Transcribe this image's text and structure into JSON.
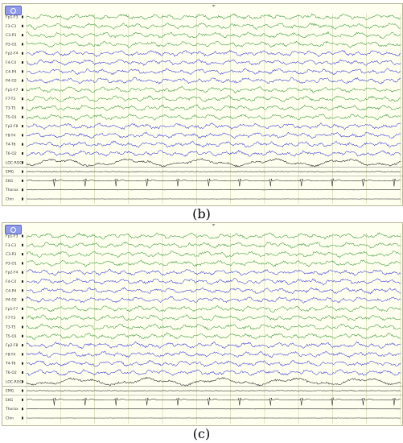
{
  "panels": [
    {
      "caption": "(b)",
      "button_icon": "settings-circle-icon",
      "channels": [
        {
          "label": "Fp1-F3",
          "type": "eeg-green"
        },
        {
          "label": "F3-C3",
          "type": "eeg-green"
        },
        {
          "label": "C3-P3",
          "type": "eeg-green"
        },
        {
          "label": "P3-O1",
          "type": "eeg-green"
        },
        {
          "label": "Fp2-F4",
          "type": "eeg-blue"
        },
        {
          "label": "F4-C4",
          "type": "eeg-blue"
        },
        {
          "label": "C4-P4",
          "type": "eeg-blue"
        },
        {
          "label": "P4-O2",
          "type": "eeg-blue"
        },
        {
          "label": "Fp1-F7",
          "type": "eeg-green"
        },
        {
          "label": "F7-T3",
          "type": "eeg-green"
        },
        {
          "label": "T3-T5",
          "type": "eeg-green"
        },
        {
          "label": "T5-O1",
          "type": "eeg-green"
        },
        {
          "label": "Fp2-F8",
          "type": "eeg-blue"
        },
        {
          "label": "F8-T4",
          "type": "eeg-blue"
        },
        {
          "label": "T4-T6",
          "type": "eeg-blue"
        },
        {
          "label": "T6-O2",
          "type": "eeg-blue"
        },
        {
          "label": "LOC-ROC",
          "type": "eog"
        },
        {
          "label": "EMG",
          "type": "emg"
        },
        {
          "label": "EKG",
          "type": "ekg"
        },
        {
          "label": "Thorax",
          "type": "flat"
        },
        {
          "label": "Chin",
          "type": "flat"
        }
      ]
    },
    {
      "caption": "(c)",
      "button_icon": "settings-circle-icon",
      "channels": [
        {
          "label": "Fp1-F3",
          "type": "eeg-green"
        },
        {
          "label": "F3-C3",
          "type": "eeg-green"
        },
        {
          "label": "C3-P3",
          "type": "eeg-green"
        },
        {
          "label": "P3-O1",
          "type": "eeg-green"
        },
        {
          "label": "Fp2-F4",
          "type": "eeg-blue"
        },
        {
          "label": "F4-C4",
          "type": "eeg-blue"
        },
        {
          "label": "C4-P4",
          "type": "eeg-blue"
        },
        {
          "label": "P4-O2",
          "type": "eeg-blue"
        },
        {
          "label": "Fp1-F7",
          "type": "eeg-green"
        },
        {
          "label": "F7-T3",
          "type": "eeg-green"
        },
        {
          "label": "T3-T5",
          "type": "eeg-green"
        },
        {
          "label": "T5-O1",
          "type": "eeg-green"
        },
        {
          "label": "Fp2-F8",
          "type": "eeg-blue"
        },
        {
          "label": "F8-T4",
          "type": "eeg-blue"
        },
        {
          "label": "T4-T6",
          "type": "eeg-blue"
        },
        {
          "label": "T6-O2",
          "type": "eeg-blue"
        },
        {
          "label": "LOC-ROC",
          "type": "eog"
        },
        {
          "label": "EMG",
          "type": "emg"
        },
        {
          "label": "EKG",
          "type": "ekg"
        },
        {
          "label": "Thorax",
          "type": "flat"
        },
        {
          "label": "Chin",
          "type": "flat"
        }
      ]
    }
  ],
  "colors": {
    "eeg-green": "#3a9a3a",
    "eeg-blue": "#3b3bd6",
    "eog": "#222222",
    "emg": "#222222",
    "ekg": "#222222",
    "flat": "#222222",
    "grid": "#c9d6a8",
    "separator": "#8a8a8a"
  }
}
